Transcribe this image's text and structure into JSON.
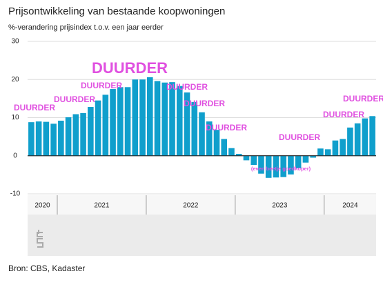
{
  "chart_data": {
    "type": "bar",
    "title": "Prijsontwikkeling van bestaande koopwoningen",
    "subtitle": "%-verandering prijsindex t.o.v. een jaar eerder",
    "source": "Bron: CBS, Kadaster",
    "x": [
      "2020",
      "2020",
      "2020",
      "2020",
      "2021",
      "2021",
      "2021",
      "2021",
      "2021",
      "2021",
      "2021",
      "2021",
      "2021",
      "2021",
      "2021",
      "2021",
      "2022",
      "2022",
      "2022",
      "2022",
      "2022",
      "2022",
      "2022",
      "2022",
      "2022",
      "2022",
      "2022",
      "2022",
      "2023",
      "2023",
      "2023",
      "2023",
      "2023",
      "2023",
      "2023",
      "2023",
      "2023",
      "2023",
      "2023",
      "2023",
      "2024",
      "2024",
      "2024",
      "2024",
      "2024",
      "2024",
      "2024"
    ],
    "values": [
      8.8,
      9.0,
      8.9,
      8.4,
      9.2,
      10.1,
      10.9,
      11.2,
      12.8,
      14.5,
      16.0,
      17.5,
      18.0,
      18.0,
      20.0,
      20.0,
      20.6,
      19.6,
      19.2,
      19.3,
      18.3,
      16.6,
      14.1,
      11.4,
      9.0,
      6.8,
      4.4,
      2.0,
      0.5,
      -1.2,
      -2.4,
      -4.7,
      -5.8,
      -5.7,
      -5.6,
      -4.9,
      -3.3,
      -1.8,
      -0.5,
      1.9,
      1.7,
      4.0,
      4.4,
      7.4,
      8.5,
      9.8,
      10.4
    ],
    "color": "#109fcc",
    "ylim": [
      -10,
      30
    ],
    "yticks": [
      -10,
      0,
      10,
      20,
      30
    ],
    "grid": true,
    "annotations": [
      "DUURDER",
      "DUURDER",
      "DUURDER",
      "DUURDER",
      "DUURDER",
      "DUURDER",
      "DUURDER",
      "DUURDER",
      "DUURDER",
      "DUURDER",
      "(even beetje goedkoper)"
    ]
  }
}
